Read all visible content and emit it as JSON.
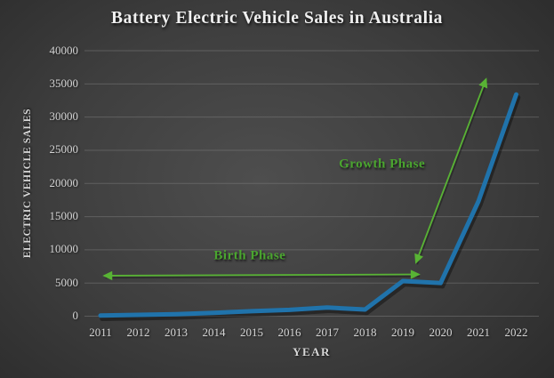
{
  "title": "Battery Electric Vehicle Sales in Australia",
  "chart_data": {
    "type": "line",
    "title": "Battery Electric Vehicle Sales in Australia",
    "xlabel": "YEAR",
    "ylabel": "ELECTRIC VEHICLE SALES",
    "categories": [
      2011,
      2012,
      2013,
      2014,
      2015,
      2016,
      2017,
      2018,
      2019,
      2020,
      2021,
      2022
    ],
    "series": [
      {
        "name": "battery-electric-vehicle-sales",
        "color": "#2073ab",
        "values": [
          100,
          200,
          300,
          500,
          750,
          950,
          1300,
          1000,
          5300,
          5000,
          17300,
          33400
        ]
      }
    ],
    "ylim": [
      0,
      40000
    ],
    "yticks": [
      0,
      5000,
      10000,
      15000,
      20000,
      25000,
      30000,
      35000,
      40000
    ],
    "grid": true,
    "legend": "none",
    "annotation_color": "#58b334",
    "annotation_text_color": "#4aa52f",
    "annotations": [
      {
        "name": "birth-phase",
        "label": "Birth Phase",
        "arrow": {
          "x1": 2011.1,
          "y1": 6100,
          "x2": 2019.42,
          "y2": 6300
        },
        "label_x": 2014.95,
        "label_y": 9000
      },
      {
        "name": "growth-phase",
        "label": "Growth Phase",
        "arrow": {
          "x1": 2019.35,
          "y1": 8100,
          "x2": 2021.2,
          "y2": 35700
        },
        "label_x": 2018.45,
        "label_y": 22800
      }
    ]
  },
  "colors": {
    "background_center": "#4e4e4e",
    "background_edge": "#242424",
    "grid": "#8a8a8a",
    "line": "#2073ab",
    "annotation_green": "#58b334",
    "title_text": "#f0f0f0",
    "tick_text": "#d4d4d4"
  }
}
